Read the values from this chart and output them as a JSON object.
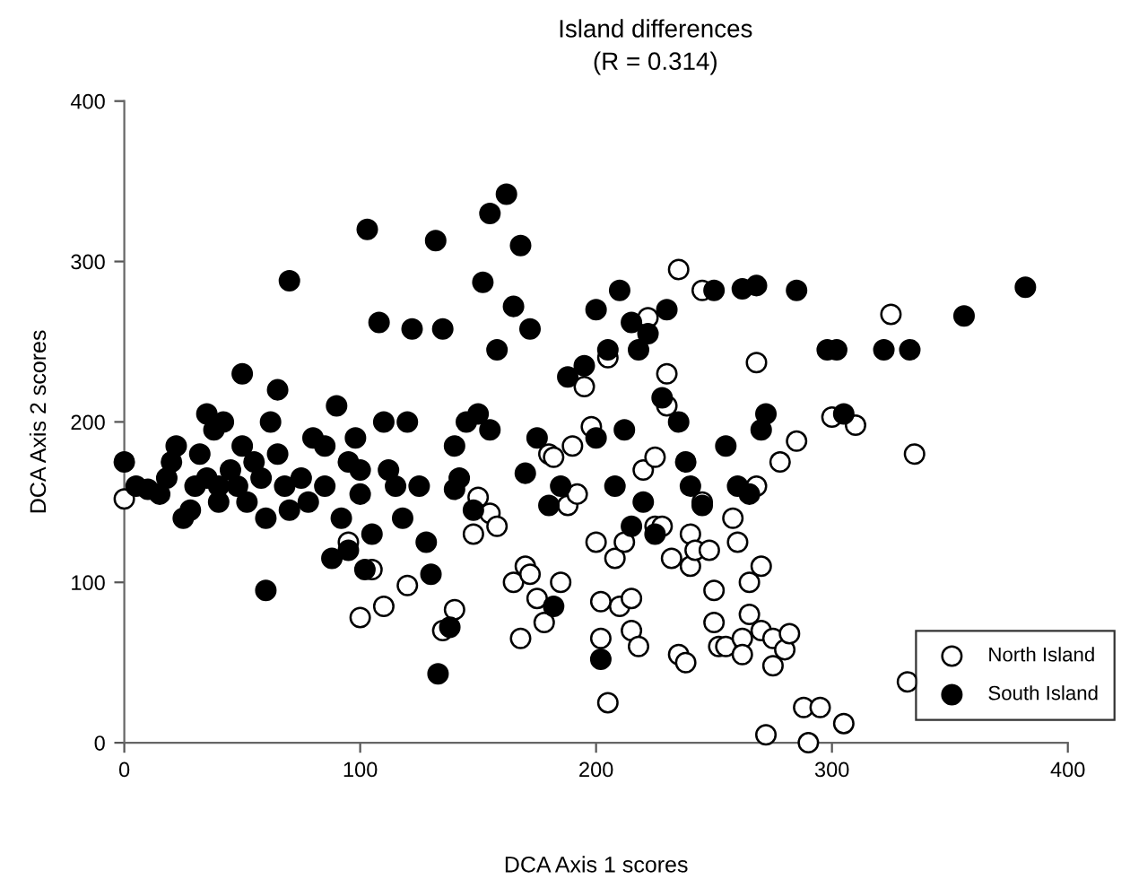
{
  "chart_data": {
    "type": "scatter",
    "title": "Island differences",
    "subtitle": "(R = 0.314)",
    "xlabel": "DCA Axis 1 scores",
    "ylabel": "DCA Axis 2 scores",
    "xlim": [
      0,
      400
    ],
    "ylim": [
      0,
      400
    ],
    "xticks": [
      0,
      100,
      200,
      300,
      400
    ],
    "yticks": [
      0,
      100,
      200,
      300,
      400
    ],
    "grid": false,
    "legend": "bottom right",
    "marker": "circle",
    "series": [
      {
        "name": "North Island",
        "color": "#ffffff",
        "x": [
          0,
          95,
          100,
          105,
          110,
          120,
          135,
          140,
          148,
          150,
          155,
          158,
          165,
          168,
          170,
          172,
          175,
          178,
          180,
          182,
          185,
          188,
          190,
          192,
          195,
          198,
          200,
          202,
          202,
          205,
          205,
          208,
          210,
          212,
          215,
          215,
          218,
          220,
          222,
          225,
          225,
          228,
          230,
          230,
          232,
          235,
          235,
          238,
          240,
          240,
          242,
          245,
          245,
          248,
          250,
          250,
          252,
          255,
          258,
          260,
          262,
          262,
          265,
          265,
          268,
          268,
          270,
          270,
          272,
          275,
          275,
          278,
          280,
          282,
          285,
          288,
          290,
          295,
          300,
          305,
          310,
          325,
          332,
          335
        ],
        "values": [
          152,
          125,
          78,
          108,
          85,
          98,
          70,
          83,
          130,
          153,
          143,
          135,
          100,
          65,
          110,
          105,
          90,
          75,
          180,
          178,
          100,
          148,
          185,
          155,
          222,
          197,
          125,
          88,
          65,
          25,
          240,
          115,
          85,
          125,
          90,
          70,
          60,
          170,
          265,
          178,
          135,
          135,
          230,
          210,
          115,
          295,
          55,
          50,
          130,
          110,
          120,
          282,
          150,
          120,
          95,
          75,
          60,
          60,
          140,
          125,
          65,
          55,
          100,
          80,
          237,
          160,
          110,
          70,
          5,
          48,
          65,
          175,
          58,
          68,
          188,
          22,
          0,
          22,
          203,
          12,
          198,
          267,
          38,
          180
        ]
      },
      {
        "name": "South Island",
        "color": "#000000",
        "x": [
          0,
          5,
          10,
          15,
          18,
          20,
          22,
          25,
          28,
          30,
          32,
          35,
          35,
          38,
          40,
          40,
          42,
          45,
          48,
          50,
          50,
          52,
          55,
          58,
          60,
          60,
          62,
          65,
          65,
          68,
          70,
          70,
          75,
          78,
          80,
          85,
          85,
          88,
          90,
          92,
          95,
          95,
          98,
          100,
          100,
          102,
          103,
          105,
          108,
          110,
          112,
          115,
          118,
          120,
          122,
          125,
          128,
          130,
          132,
          133,
          135,
          138,
          140,
          140,
          142,
          145,
          148,
          150,
          152,
          155,
          155,
          158,
          162,
          165,
          168,
          170,
          172,
          175,
          180,
          182,
          185,
          188,
          195,
          200,
          200,
          202,
          205,
          208,
          210,
          212,
          215,
          215,
          218,
          220,
          222,
          225,
          228,
          230,
          235,
          238,
          240,
          245,
          250,
          255,
          260,
          262,
          265,
          268,
          270,
          272,
          285,
          298,
          302,
          305,
          322,
          333,
          356,
          382
        ],
        "values": [
          175,
          160,
          158,
          155,
          165,
          175,
          185,
          140,
          145,
          160,
          180,
          165,
          205,
          195,
          150,
          160,
          200,
          170,
          160,
          185,
          230,
          150,
          175,
          165,
          95,
          140,
          200,
          180,
          220,
          160,
          288,
          145,
          165,
          150,
          190,
          185,
          160,
          115,
          210,
          140,
          175,
          120,
          190,
          170,
          155,
          108,
          320,
          130,
          262,
          200,
          170,
          160,
          140,
          200,
          258,
          160,
          125,
          105,
          313,
          43,
          258,
          72,
          185,
          158,
          165,
          200,
          145,
          205,
          287,
          330,
          195,
          245,
          342,
          272,
          310,
          168,
          258,
          190,
          148,
          85,
          160,
          228,
          235,
          270,
          190,
          52,
          245,
          160,
          282,
          195,
          262,
          135,
          245,
          150,
          255,
          130,
          215,
          270,
          200,
          175,
          160,
          148,
          282,
          185,
          160,
          283,
          155,
          285,
          195,
          205,
          282,
          245,
          245,
          205,
          245,
          245,
          266,
          284
        ]
      }
    ]
  }
}
